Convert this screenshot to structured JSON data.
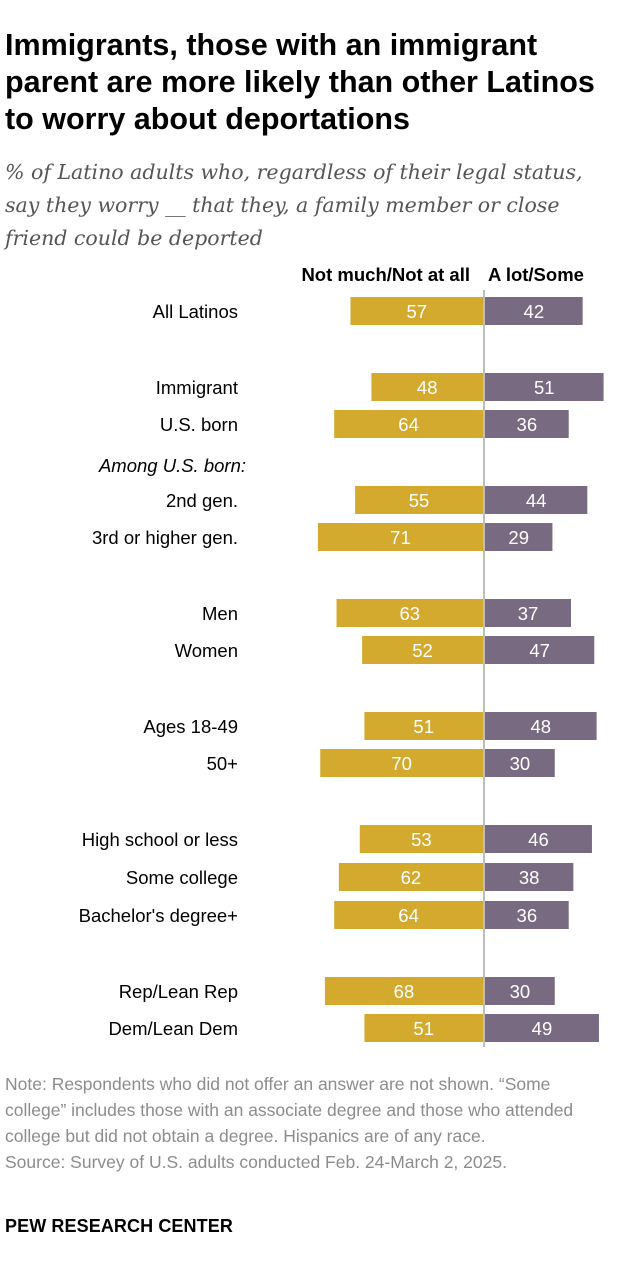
{
  "title": "Immigrants, those with an immigrant parent are more likely than other Latinos to worry about deportations",
  "subtitle": "% of Latino adults who, regardless of their legal status, say they worry __ that they, a family member or close friend could be deported",
  "note": "Note: Respondents who did not offer an answer are not shown. “Some college” includes those with an associate degree and those who attended college but did not obtain a degree. Hispanics are of any race.",
  "source": "Source: Survey of U.S. adults conducted Feb. 24-March 2, 2025.",
  "brand": "PEW RESEARCH CENTER",
  "colors": {
    "not_much": "#D4AA2E",
    "a_lot": "#776A81",
    "center_line": "#BDBDBD",
    "bar_text": "#ffffff"
  },
  "chart_data": {
    "type": "bar",
    "orientation": "horizontal-diverging",
    "series": [
      {
        "name": "Not much/Not at all",
        "values": [
          57,
          48,
          64,
          55,
          71,
          63,
          52,
          51,
          70,
          53,
          62,
          64,
          68,
          51
        ]
      },
      {
        "name": "A lot/Some",
        "values": [
          42,
          51,
          36,
          44,
          29,
          37,
          47,
          48,
          30,
          46,
          38,
          36,
          30,
          49
        ]
      }
    ],
    "categories": [
      "All Latinos",
      "Immigrant",
      "U.S. born",
      "2nd gen.",
      "3rd or higher gen.",
      "Men",
      "Women",
      "Ages 18-49",
      "50+",
      "High school or less",
      "Some college",
      "Bachelor's degree+",
      "Rep/Lean Rep",
      "Dem/Lean Dem"
    ],
    "annotations": [
      "Among U.S. born:"
    ],
    "xlim": [
      0,
      100
    ]
  }
}
